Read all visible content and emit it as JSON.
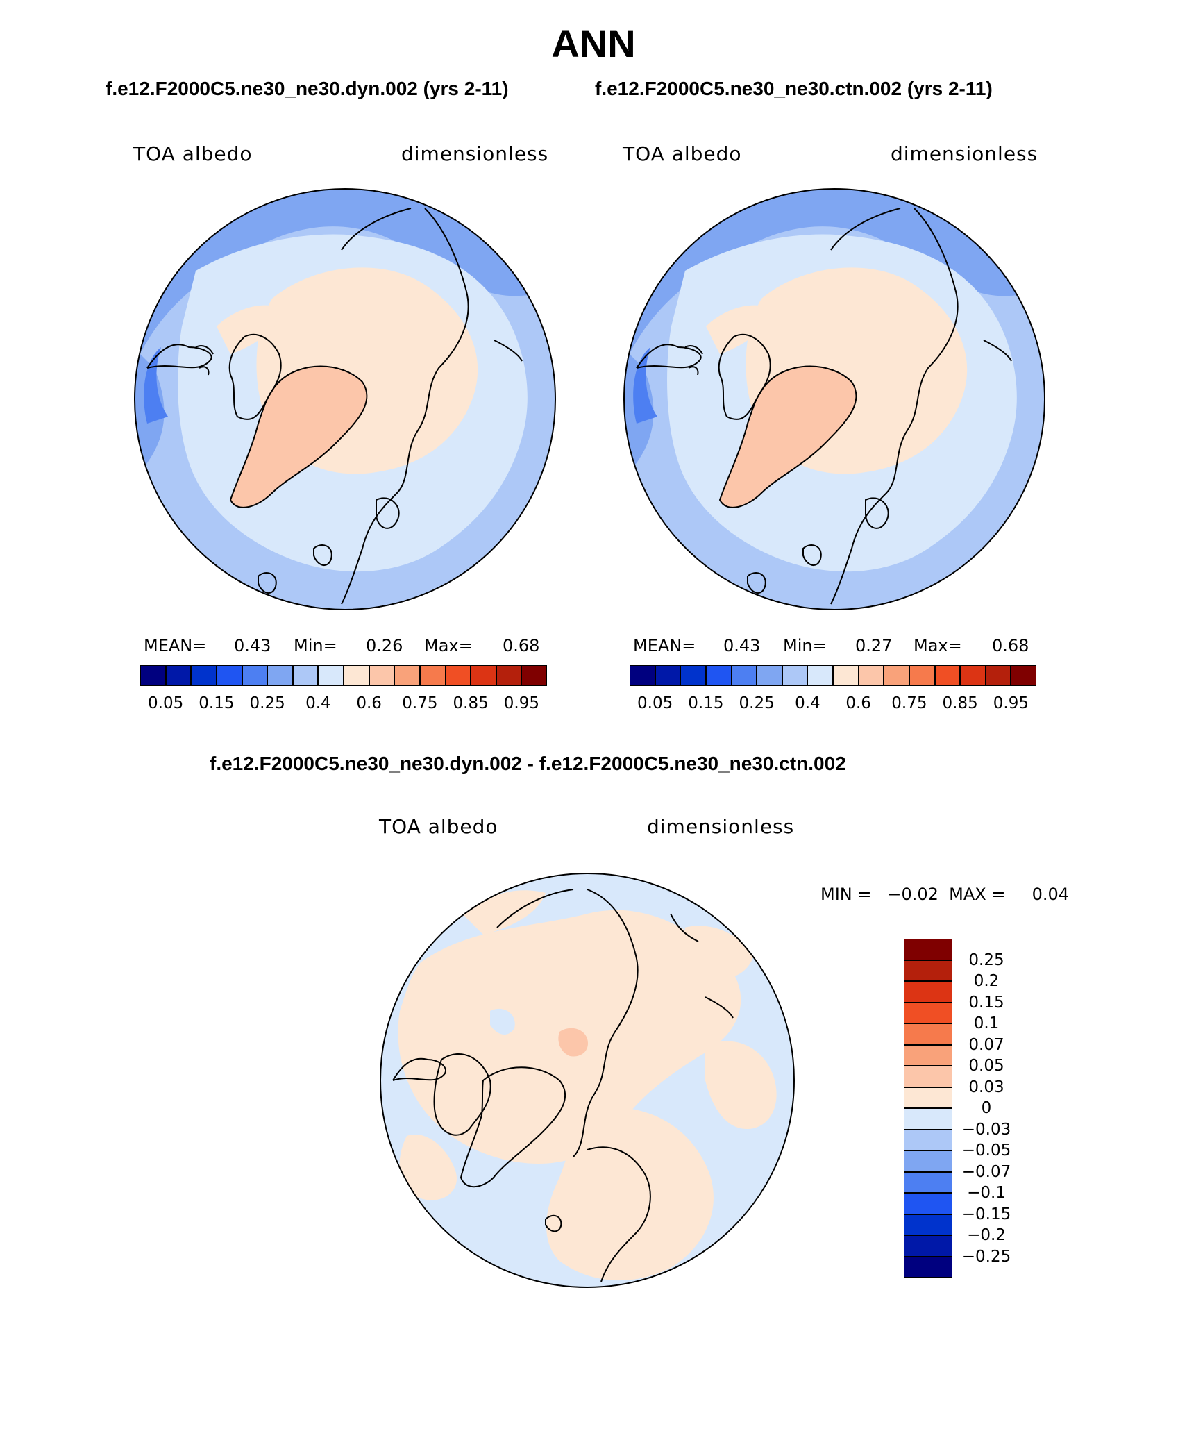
{
  "header": {
    "title": "ANN",
    "subtitle_left": "f.e12.F2000C5.ne30_ne30.dyn.002 (yrs 2-11)",
    "subtitle_right": "f.e12.F2000C5.ne30_ne30.ctn.002 (yrs 2-11)",
    "diff_title": "f.e12.F2000C5.ne30_ne30.dyn.002 - f.e12.F2000C5.ne30_ne30.ctn.002"
  },
  "panels": {
    "left": {
      "variable": "TOA albedo",
      "units": "dimensionless",
      "mean_label": "MEAN=",
      "mean": "0.43",
      "min_label": "Min=",
      "min": "0.26",
      "max_label": "Max=",
      "max": "0.68"
    },
    "right": {
      "variable": "TOA albedo",
      "units": "dimensionless",
      "mean_label": "MEAN=",
      "mean": "0.43",
      "min_label": "Min=",
      "min": "0.27",
      "max_label": "Max=",
      "max": "0.68"
    },
    "diff": {
      "variable": "TOA albedo",
      "units": "dimensionless",
      "minmax_text": "MIN =   −0.02  MAX =     0.04"
    }
  },
  "colorbar_main": {
    "colors": [
      "#00007f",
      "#0018a8",
      "#0033cc",
      "#1f55f2",
      "#4d7ff2",
      "#7fa6f2",
      "#adc8f7",
      "#d8e8fb",
      "#fde7d4",
      "#fcc6aa",
      "#f9a27a",
      "#f67a4c",
      "#f04f24",
      "#dc3414",
      "#b4200c",
      "#7f0000"
    ],
    "tick_labels": [
      "0.05",
      "0.15",
      "0.25",
      "0.4",
      "0.6",
      "0.75",
      "0.85",
      "0.95"
    ]
  },
  "colorbar_diff": {
    "colors": [
      "#7f0000",
      "#b4200c",
      "#dc3414",
      "#f04f24",
      "#f67a4c",
      "#f9a27a",
      "#fcc6aa",
      "#fde7d4",
      "#d8e8fb",
      "#adc8f7",
      "#7fa6f2",
      "#4d7ff2",
      "#1f55f2",
      "#0033cc",
      "#0018a8",
      "#00007f"
    ],
    "tick_labels": [
      "0.25",
      "0.2",
      "0.15",
      "0.1",
      "0.07",
      "0.05",
      "0.03",
      "0",
      "−0.03",
      "−0.05",
      "−0.07",
      "−0.1",
      "−0.15",
      "−0.2",
      "−0.25"
    ]
  }
}
